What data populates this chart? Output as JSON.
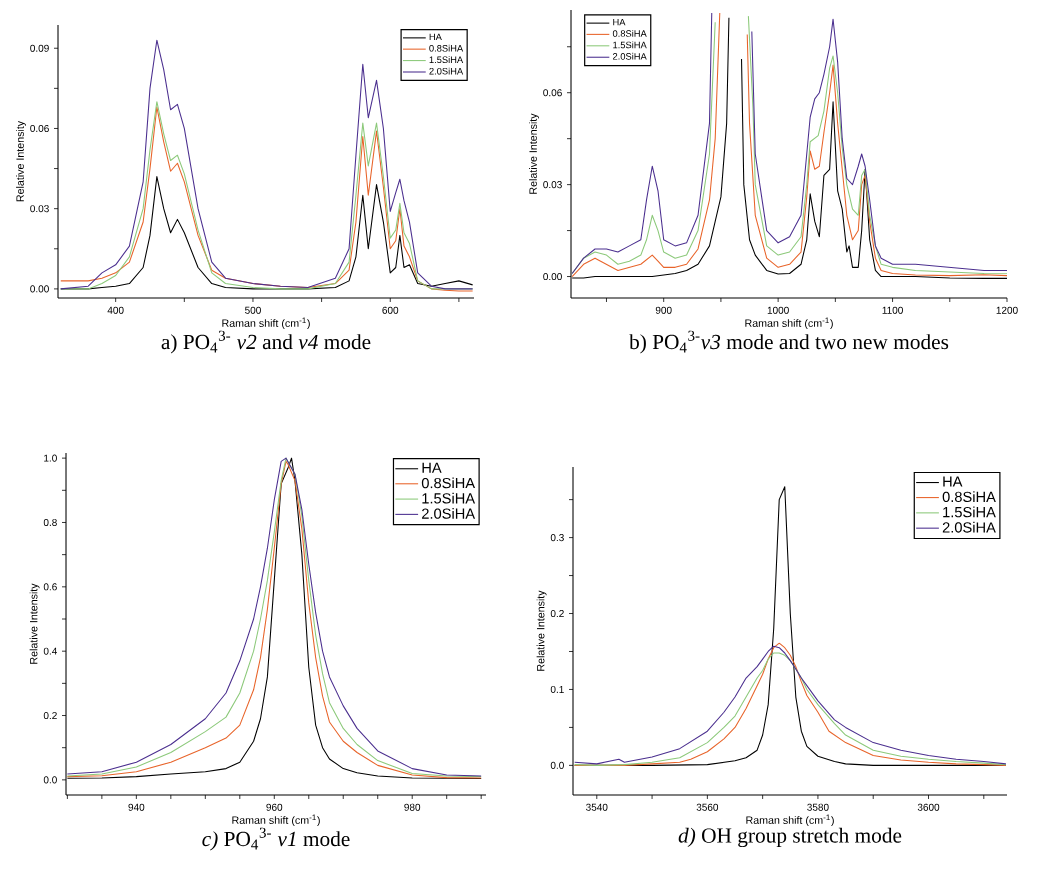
{
  "chart_data": [
    {
      "type": "line",
      "title": "a) PO$_{4}$$^{3-}$ *v2* and *v4* mode",
      "xlabel": "Raman shift (cm$^{-1}$)",
      "ylabel": "Relative Intensity",
      "legend": "top right",
      "xlim": [
        358,
        661
      ],
      "ylim": [
        -0.0034,
        0.0987
      ],
      "xticks": [
        400,
        {
          "value": 450,
          "label": null
        },
        500,
        {
          "value": 550,
          "label": null
        },
        600,
        {
          "value": 650,
          "label": null
        }
      ],
      "yticks": [
        {
          "value": 0,
          "label": "0.00"
        },
        {
          "value": 0.015,
          "label": null
        },
        0.03,
        {
          "value": 0.045,
          "label": null
        },
        0.06,
        {
          "value": 0.075,
          "label": null
        },
        0.09
      ],
      "series": [
        {
          "name": "HA",
          "color": "#000000",
          "x": [
            360,
            380,
            390,
            400,
            410,
            420,
            425,
            430,
            435,
            440,
            445,
            450,
            460,
            470,
            480,
            500,
            520,
            540,
            560,
            570,
            575,
            580,
            584,
            590,
            595,
            600,
            604,
            607,
            610,
            614,
            620,
            630,
            640,
            650,
            660
          ],
          "values": [
            0,
            0,
            0.0005,
            0.001,
            0.002,
            0.008,
            0.02,
            0.042,
            0.03,
            0.021,
            0.026,
            0.021,
            0.008,
            0.002,
            0.0005,
            0,
            0,
            0,
            0.0005,
            0.003,
            0.012,
            0.035,
            0.015,
            0.039,
            0.025,
            0.006,
            0.008,
            0.02,
            0.008,
            0.009,
            0.002,
            0.001,
            0.002,
            0.003,
            0.0015
          ]
        },
        {
          "name": "0.8SiHA",
          "color": "#e8642a",
          "x": [
            360,
            380,
            390,
            400,
            410,
            420,
            425,
            430,
            435,
            440,
            445,
            450,
            460,
            470,
            480,
            500,
            520,
            540,
            560,
            570,
            575,
            580,
            584,
            590,
            595,
            600,
            604,
            607,
            610,
            614,
            620,
            630,
            640,
            650,
            660
          ],
          "values": [
            0.003,
            0.003,
            0.004,
            0.006,
            0.01,
            0.025,
            0.045,
            0.068,
            0.055,
            0.044,
            0.047,
            0.04,
            0.02,
            0.007,
            0.004,
            0.002,
            0.001,
            0.0005,
            0.002,
            0.007,
            0.025,
            0.057,
            0.035,
            0.059,
            0.038,
            0.015,
            0.018,
            0.03,
            0.016,
            0.012,
            0.003,
            0,
            -0.0005,
            -0.0008,
            -0.0008
          ]
        },
        {
          "name": "1.5SiHA",
          "color": "#8cc97a",
          "x": [
            360,
            380,
            390,
            400,
            410,
            420,
            425,
            430,
            435,
            440,
            445,
            450,
            460,
            470,
            480,
            500,
            520,
            540,
            560,
            570,
            575,
            580,
            584,
            590,
            595,
            600,
            604,
            607,
            610,
            614,
            620,
            630,
            640,
            650,
            660
          ],
          "values": [
            0,
            0,
            0.002,
            0.005,
            0.012,
            0.03,
            0.052,
            0.07,
            0.058,
            0.048,
            0.05,
            0.043,
            0.022,
            0.006,
            0.002,
            0.0005,
            0,
            0,
            0.002,
            0.01,
            0.035,
            0.062,
            0.046,
            0.062,
            0.042,
            0.019,
            0.022,
            0.032,
            0.021,
            0.017,
            0.003,
            0,
            0,
            0,
            0
          ]
        },
        {
          "name": "2.0SiHA",
          "color": "#4b2f8f",
          "x": [
            360,
            380,
            390,
            400,
            410,
            420,
            425,
            430,
            435,
            440,
            445,
            450,
            460,
            470,
            480,
            500,
            520,
            540,
            560,
            570,
            575,
            580,
            584,
            590,
            595,
            600,
            604,
            607,
            610,
            614,
            620,
            630,
            640,
            650,
            660
          ],
          "values": [
            0,
            0.001,
            0.006,
            0.009,
            0.016,
            0.04,
            0.075,
            0.093,
            0.082,
            0.067,
            0.069,
            0.06,
            0.03,
            0.01,
            0.004,
            0.002,
            0.001,
            0.0005,
            0.004,
            0.015,
            0.05,
            0.084,
            0.064,
            0.078,
            0.06,
            0.029,
            0.036,
            0.041,
            0.033,
            0.025,
            0.006,
            0.001,
            0,
            0,
            0
          ]
        }
      ]
    },
    {
      "type": "line",
      "title": "b) PO$_{4}$$^{3-}$*v3* mode and two new modes",
      "xlabel": "Raman shift (cm$^{-1}$)",
      "ylabel": "Relative Intensity",
      "legend": "top left",
      "xlim": [
        819,
        1200
      ],
      "ylim": [
        -0.007,
        0.087
      ],
      "xticks": [
        {
          "value": 850,
          "label": null
        },
        900,
        {
          "value": 950,
          "label": null
        },
        1000,
        {
          "value": 1050,
          "label": null
        },
        1100,
        {
          "value": 1150,
          "label": null
        },
        1200
      ],
      "yticks": [
        {
          "value": 0,
          "label": "0.00"
        },
        {
          "value": 0.015,
          "label": null
        },
        0.03,
        {
          "value": 0.045,
          "label": null
        },
        0.06,
        {
          "value": 0.075,
          "label": null
        }
      ],
      "series": [
        {
          "name": "HA",
          "color": "#000000",
          "x": [
            820,
            830,
            840,
            850,
            860,
            870,
            880,
            890,
            900,
            910,
            920,
            930,
            940,
            945,
            950,
            955,
            957,
            962,
            968,
            970,
            975,
            980,
            990,
            1000,
            1010,
            1020,
            1025,
            1028,
            1032,
            1036,
            1040,
            1045,
            1048,
            1052,
            1056,
            1060,
            1062,
            1065,
            1070,
            1073,
            1076,
            1080,
            1085,
            1090,
            1100,
            1120,
            1150,
            1180,
            1200
          ],
          "values": [
            -0.0005,
            -0.0005,
            0,
            0,
            0,
            0,
            0,
            0,
            0.0005,
            0.001,
            0.002,
            0.004,
            0.01,
            0.018,
            0.026,
            0.05,
            0.0845,
            null,
            0.071,
            0.03,
            0.012,
            0.007,
            0.002,
            0.0008,
            0.001,
            0.004,
            0.012,
            0.027,
            0.018,
            0.013,
            0.033,
            0.035,
            0.057,
            0.028,
            0.022,
            0.008,
            0.01,
            0.003,
            0.003,
            0.015,
            0.035,
            0.012,
            0.002,
            0,
            0,
            0,
            -0.0005,
            -0.0006,
            -0.0006
          ]
        },
        {
          "name": "0.8SiHA",
          "color": "#e8642a",
          "x": [
            820,
            830,
            840,
            850,
            860,
            870,
            880,
            890,
            895,
            900,
            910,
            920,
            930,
            940,
            945,
            949,
            962,
            973,
            975,
            980,
            990,
            1000,
            1010,
            1020,
            1025,
            1028,
            1032,
            1036,
            1040,
            1045,
            1048,
            1052,
            1056,
            1060,
            1065,
            1070,
            1073,
            1076,
            1080,
            1085,
            1090,
            1100,
            1120,
            1150,
            1180,
            1200
          ],
          "values": [
            0,
            0.004,
            0.006,
            0.004,
            0.002,
            0.003,
            0.004,
            0.007,
            0.005,
            0.003,
            0.003,
            0.004,
            0.009,
            0.025,
            0.045,
            0.086,
            null,
            0.079,
            0.05,
            0.02,
            0.006,
            0.003,
            0.004,
            0.008,
            0.026,
            0.041,
            0.035,
            0.036,
            0.047,
            0.06,
            0.069,
            0.05,
            0.035,
            0.02,
            0.012,
            0.015,
            0.03,
            0.033,
            0.018,
            0.006,
            0.002,
            0.001,
            0.0005,
            0.0003,
            0.0006,
            0.0003
          ]
        },
        {
          "name": "1.5SiHA",
          "color": "#8cc97a",
          "x": [
            820,
            830,
            840,
            850,
            860,
            870,
            880,
            885,
            890,
            895,
            900,
            910,
            920,
            930,
            940,
            945,
            960,
            974,
            978,
            980,
            990,
            1000,
            1010,
            1020,
            1025,
            1028,
            1035,
            1040,
            1045,
            1048,
            1052,
            1056,
            1060,
            1065,
            1070,
            1073,
            1076,
            1080,
            1085,
            1090,
            1100,
            1120,
            1150,
            1180,
            1200
          ],
          "values": [
            0.001,
            0.006,
            0.008,
            0.007,
            0.004,
            0.005,
            0.007,
            0.012,
            0.02,
            0.015,
            0.008,
            0.006,
            0.007,
            0.015,
            0.04,
            0.083,
            null,
            0.085,
            0.055,
            0.03,
            0.01,
            0.007,
            0.008,
            0.013,
            0.03,
            0.044,
            0.046,
            0.054,
            0.068,
            0.072,
            0.06,
            0.042,
            0.03,
            0.022,
            0.02,
            0.033,
            0.035,
            0.02,
            0.01,
            0.004,
            0.003,
            0.002,
            0.0015,
            0.001,
            0.0009
          ]
        },
        {
          "name": "2.0SiHA",
          "color": "#4b2f8f",
          "x": [
            820,
            830,
            840,
            850,
            860,
            870,
            880,
            885,
            890,
            895,
            900,
            910,
            920,
            930,
            940,
            942,
            960,
            977,
            980,
            990,
            1000,
            1010,
            1020,
            1025,
            1028,
            1032,
            1036,
            1040,
            1045,
            1048,
            1052,
            1056,
            1060,
            1065,
            1070,
            1073,
            1076,
            1080,
            1085,
            1090,
            1100,
            1120,
            1150,
            1180,
            1200
          ],
          "values": [
            0.001,
            0.006,
            0.009,
            0.009,
            0.008,
            0.01,
            0.012,
            0.025,
            0.036,
            0.028,
            0.012,
            0.01,
            0.011,
            0.02,
            0.05,
            0.086,
            null,
            0.08,
            0.04,
            0.015,
            0.011,
            0.013,
            0.02,
            0.04,
            0.052,
            0.058,
            0.06,
            0.066,
            0.075,
            0.084,
            0.07,
            0.045,
            0.032,
            0.03,
            0.036,
            0.04,
            0.036,
            0.025,
            0.01,
            0.006,
            0.004,
            0.004,
            0.003,
            0.002,
            0.002
          ]
        }
      ]
    },
    {
      "type": "line",
      "title": "*c)* PO$_{4}$$^{3-}$ *v1* mode",
      "xlabel": "Raman shift (cm$^{-1}$)",
      "ylabel": "Relative Intensity",
      "legend": "top right",
      "xlim": [
        929.8,
        990.7
      ],
      "ylim": [
        -0.047,
        1.016
      ],
      "xticks": [
        {
          "value": 930,
          "label": null
        },
        {
          "value": 935,
          "label": null
        },
        940,
        {
          "value": 945,
          "label": null
        },
        {
          "value": 950,
          "label": null
        },
        {
          "value": 955,
          "label": null
        },
        960,
        {
          "value": 965,
          "label": null
        },
        {
          "value": 970,
          "label": null
        },
        {
          "value": 975,
          "label": null
        },
        980,
        {
          "value": 985,
          "label": null
        },
        {
          "value": 990,
          "label": null
        }
      ],
      "yticks": [
        {
          "value": 0,
          "label": "0.0"
        },
        {
          "value": 0.1,
          "label": null
        },
        0.2,
        {
          "value": 0.3,
          "label": null
        },
        0.4,
        {
          "value": 0.5,
          "label": null
        },
        0.6,
        {
          "value": 0.7,
          "label": null
        },
        0.8,
        {
          "value": 0.9,
          "label": null
        },
        {
          "value": 1,
          "label": "1.0"
        }
      ],
      "series": [
        {
          "name": "HA",
          "color": "#000000",
          "x": [
            930,
            935,
            940,
            945,
            950,
            953,
            955,
            957,
            958,
            959,
            960,
            961,
            962,
            962.5,
            963,
            964,
            965,
            966,
            967,
            968,
            970,
            972,
            975,
            980,
            985,
            990
          ],
          "values": [
            0.005,
            0.006,
            0.01,
            0.018,
            0.025,
            0.035,
            0.055,
            0.12,
            0.19,
            0.32,
            0.62,
            0.92,
            0.97,
            1.0,
            0.93,
            0.7,
            0.35,
            0.17,
            0.1,
            0.065,
            0.035,
            0.022,
            0.012,
            0.006,
            0.005,
            0.004
          ]
        },
        {
          "name": "0.8SiHA",
          "color": "#e8642a",
          "x": [
            930,
            935,
            940,
            945,
            950,
            953,
            955,
            957,
            958,
            959,
            960,
            961,
            961.7,
            962,
            963,
            964,
            965,
            966,
            967,
            968,
            970,
            972,
            975,
            980,
            985,
            990
          ],
          "values": [
            0.01,
            0.013,
            0.025,
            0.055,
            0.1,
            0.13,
            0.17,
            0.28,
            0.38,
            0.53,
            0.72,
            0.92,
            0.99,
            0.98,
            0.93,
            0.78,
            0.55,
            0.38,
            0.26,
            0.18,
            0.12,
            0.085,
            0.045,
            0.015,
            0.007,
            0.006
          ]
        },
        {
          "name": "1.5SiHA",
          "color": "#8cc97a",
          "x": [
            930,
            935,
            940,
            945,
            950,
            953,
            955,
            957,
            958,
            959,
            960,
            961,
            961.7,
            963,
            964,
            965,
            966,
            967,
            968,
            970,
            972,
            975,
            980,
            985,
            990
          ],
          "values": [
            0.012,
            0.018,
            0.04,
            0.085,
            0.15,
            0.195,
            0.27,
            0.4,
            0.5,
            0.62,
            0.77,
            0.93,
            1.0,
            0.95,
            0.82,
            0.62,
            0.45,
            0.33,
            0.24,
            0.16,
            0.11,
            0.06,
            0.02,
            0.012,
            0.01
          ]
        },
        {
          "name": "2.0SiHA",
          "color": "#4b2f8f",
          "x": [
            930,
            935,
            940,
            945,
            950,
            953,
            955,
            957,
            958,
            959,
            960,
            961,
            961.7,
            963,
            964,
            965,
            966,
            967,
            968,
            970,
            972,
            975,
            980,
            985,
            990
          ],
          "values": [
            0.018,
            0.025,
            0.055,
            0.11,
            0.19,
            0.27,
            0.37,
            0.5,
            0.6,
            0.72,
            0.87,
            0.99,
            1.0,
            0.95,
            0.84,
            0.67,
            0.52,
            0.4,
            0.32,
            0.23,
            0.16,
            0.09,
            0.035,
            0.015,
            0.012
          ]
        }
      ]
    },
    {
      "type": "line",
      "title": "*d)* OH group stretch mode",
      "xlabel": "Raman shift (cm$^{-1}$)",
      "ylabel": "Relative Intensity",
      "legend": "top right",
      "xlim": [
        3535.7,
        3614.2
      ],
      "ylim": [
        -0.039,
        0.393
      ],
      "xticks": [
        3540,
        {
          "value": 3550,
          "label": null
        },
        3560,
        {
          "value": 3570,
          "label": null
        },
        3580,
        {
          "value": 3590,
          "label": null
        },
        3600,
        {
          "value": 3610,
          "label": null
        }
      ],
      "yticks": [
        {
          "value": 0,
          "label": "0.0"
        },
        {
          "value": 0.05,
          "label": null
        },
        0.1,
        {
          "value": 0.15,
          "label": null
        },
        0.2,
        {
          "value": 0.25,
          "label": null
        },
        0.3,
        {
          "value": 0.35,
          "label": null
        }
      ],
      "series": [
        {
          "name": "HA",
          "color": "#000000",
          "x": [
            3536,
            3540,
            3550,
            3560,
            3565,
            3567,
            3569,
            3570,
            3571,
            3572,
            3573,
            3574,
            3575,
            3576,
            3577,
            3578,
            3580,
            3583,
            3585,
            3590,
            3600,
            3610,
            3614
          ],
          "values": [
            0,
            0,
            0,
            0.001,
            0.006,
            0.01,
            0.02,
            0.04,
            0.08,
            0.18,
            0.35,
            0.367,
            0.2,
            0.09,
            0.045,
            0.025,
            0.012,
            0.005,
            0.002,
            0,
            0,
            0,
            0
          ]
        },
        {
          "name": "0.8SiHA",
          "color": "#e8642a",
          "x": [
            3536,
            3540,
            3545,
            3550,
            3555,
            3557,
            3560,
            3563,
            3565,
            3567,
            3569,
            3570,
            3571,
            3572,
            3573,
            3574,
            3575,
            3576,
            3577,
            3578,
            3580,
            3582,
            3585,
            3590,
            3595,
            3600,
            3605,
            3610,
            3614
          ],
          "values": [
            0,
            0,
            0,
            0.002,
            0.004,
            0.008,
            0.018,
            0.035,
            0.05,
            0.075,
            0.105,
            0.12,
            0.14,
            0.155,
            0.161,
            0.155,
            0.145,
            0.13,
            0.11,
            0.092,
            0.07,
            0.045,
            0.03,
            0.013,
            0.007,
            0.004,
            0.002,
            0.001,
            0
          ]
        },
        {
          "name": "1.5SiHA",
          "color": "#8cc97a",
          "x": [
            3536,
            3540,
            3545,
            3550,
            3555,
            3560,
            3563,
            3565,
            3567,
            3569,
            3570,
            3571,
            3572,
            3573,
            3574,
            3575,
            3576,
            3577,
            3578,
            3580,
            3583,
            3585,
            3590,
            3595,
            3600,
            3605,
            3610,
            3614
          ],
          "values": [
            0.001,
            0,
            0.001,
            0.004,
            0.01,
            0.03,
            0.05,
            0.065,
            0.09,
            0.115,
            0.125,
            0.14,
            0.148,
            0.148,
            0.145,
            0.138,
            0.127,
            0.115,
            0.1,
            0.08,
            0.055,
            0.04,
            0.02,
            0.012,
            0.008,
            0.005,
            0.003,
            0.001
          ]
        },
        {
          "name": "2.0SiHA",
          "color": "#4b2f8f",
          "x": [
            3536,
            3540,
            3544,
            3545,
            3550,
            3555,
            3560,
            3563,
            3565,
            3567,
            3569,
            3570,
            3571,
            3572,
            3573,
            3574,
            3575,
            3576,
            3577,
            3578,
            3580,
            3583,
            3585,
            3590,
            3595,
            3600,
            3605,
            3610,
            3614
          ],
          "values": [
            0.004,
            0.002,
            0.008,
            0.004,
            0.011,
            0.022,
            0.045,
            0.07,
            0.09,
            0.115,
            0.13,
            0.14,
            0.15,
            0.157,
            0.155,
            0.148,
            0.138,
            0.127,
            0.115,
            0.105,
            0.085,
            0.06,
            0.05,
            0.03,
            0.02,
            0.013,
            0.008,
            0.005,
            0.002
          ]
        }
      ]
    }
  ]
}
